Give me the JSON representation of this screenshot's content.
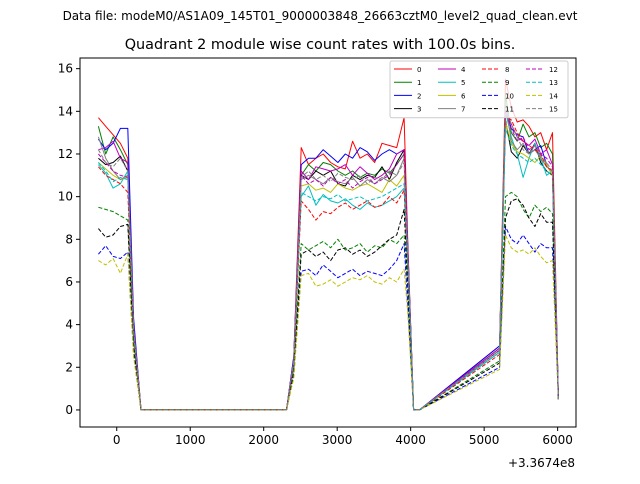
{
  "figure": {
    "suptitle": "Data file: modeM0/AS1A09_145T01_9000003848_26663cztM0_level2_quad_clean.evt",
    "offset_text": "+3.3674e8"
  },
  "chart_data": {
    "type": "line",
    "title": "Quadrant 2 module wise count rates with 100.0s bins.",
    "xlabel": "",
    "ylabel": "",
    "x_offset": 336740000,
    "xlim": [
      -500,
      6250
    ],
    "ylim": [
      -0.8,
      16.5
    ],
    "xticks": [
      0,
      1000,
      2000,
      3000,
      4000,
      5000,
      6000
    ],
    "yticks": [
      0,
      2,
      4,
      6,
      8,
      10,
      12,
      14,
      16
    ],
    "grid": false,
    "legend": {
      "placement": "top-right",
      "columns": 4
    },
    "segments": [
      {
        "x": [
          -250,
          -150,
          -50,
          50,
          150,
          230,
          330
        ]
      },
      {
        "x": [
          2310,
          2410,
          2510,
          2610,
          2710,
          2810,
          2910,
          3010,
          3110,
          3210,
          3310,
          3410,
          3510,
          3610,
          3710,
          3810,
          3910,
          3960,
          4040,
          4120
        ]
      },
      {
        "x": [
          5210,
          5290,
          5370,
          5450,
          5530,
          5610,
          5690,
          5770,
          5850,
          5930,
          6010,
          6090,
          6130
        ]
      }
    ],
    "zero_intervals": [
      [
        330,
        2310
      ],
      [
        4120,
        5210
      ]
    ],
    "series": [
      {
        "name": "0",
        "color": "#ff0000",
        "style": "solid",
        "values": [
          13.7,
          13.3,
          12.9,
          12.5,
          11.8,
          4.0,
          0,
          0,
          2.5,
          12.3,
          11.5,
          11.8,
          12.0,
          11.6,
          11.4,
          11.3,
          12.6,
          11.8,
          12.0,
          11.6,
          12.5,
          12.4,
          12.3,
          13.7,
          8.0,
          0,
          0,
          3.0,
          15.5,
          14.2,
          13.5,
          13.6,
          13.3,
          12.8,
          13.0,
          12.2,
          13.0,
          0.5
        ]
      },
      {
        "name": "1",
        "color": "#008000",
        "style": "solid",
        "values": [
          13.3,
          12.0,
          12.8,
          12.2,
          11.5,
          4.0,
          0,
          0,
          2.4,
          11.0,
          11.5,
          11.2,
          11.6,
          11.5,
          11.2,
          11.0,
          11.2,
          10.9,
          11.1,
          11.0,
          11.3,
          11.1,
          11.5,
          12.0,
          7.6,
          0,
          0,
          2.9,
          14.8,
          13.0,
          12.6,
          13.4,
          12.8,
          13.0,
          12.3,
          12.5,
          12.0,
          0.5
        ]
      },
      {
        "name": "2",
        "color": "#0000ff",
        "style": "solid",
        "values": [
          12.7,
          12.2,
          12.5,
          13.2,
          13.2,
          4.3,
          0,
          0,
          2.5,
          11.5,
          11.8,
          11.8,
          12.2,
          11.9,
          11.6,
          12.0,
          11.8,
          12.3,
          12.1,
          11.7,
          12.0,
          12.2,
          12.0,
          12.2,
          7.8,
          0,
          0,
          3.0,
          14.0,
          13.2,
          12.9,
          12.8,
          12.0,
          12.2,
          12.4,
          11.5,
          11.0,
          0.5
        ]
      },
      {
        "name": "3",
        "color": "#000000",
        "style": "solid",
        "values": [
          11.8,
          11.5,
          11.6,
          11.9,
          11.2,
          3.8,
          0,
          0,
          2.2,
          11.0,
          10.8,
          11.2,
          11.0,
          11.2,
          10.6,
          10.5,
          11.0,
          10.8,
          11.0,
          10.9,
          11.4,
          10.8,
          11.6,
          12.2,
          7.5,
          0,
          0,
          2.8,
          13.6,
          12.1,
          11.8,
          12.4,
          12.0,
          12.5,
          11.6,
          11.2,
          11.0,
          0.5
        ]
      },
      {
        "name": "4",
        "color": "#bf00bf",
        "style": "solid",
        "values": [
          12.2,
          12.3,
          12.6,
          11.8,
          11.6,
          3.9,
          0,
          0,
          2.3,
          11.2,
          10.8,
          11.4,
          11.3,
          11.2,
          11.3,
          11.5,
          11.0,
          11.4,
          11.1,
          10.8,
          11.0,
          11.3,
          12.0,
          12.2,
          7.6,
          0,
          0,
          2.9,
          14.2,
          13.4,
          12.8,
          12.6,
          12.4,
          12.7,
          12.0,
          12.2,
          11.5,
          0.5
        ]
      },
      {
        "name": "5",
        "color": "#00bfbf",
        "style": "solid",
        "values": [
          11.5,
          11.1,
          10.4,
          10.6,
          11.2,
          3.6,
          0,
          0,
          2.2,
          10.0,
          10.5,
          9.6,
          10.1,
          9.8,
          9.7,
          9.9,
          9.6,
          9.4,
          9.7,
          9.5,
          9.6,
          9.8,
          10.0,
          10.4,
          6.8,
          0,
          0,
          2.7,
          14.0,
          12.8,
          12.0,
          10.9,
          11.8,
          12.5,
          11.8,
          11.0,
          11.2,
          0.5
        ]
      },
      {
        "name": "6",
        "color": "#bfbf00",
        "style": "solid",
        "values": [
          11.6,
          11.3,
          11.0,
          10.8,
          10.9,
          3.7,
          0,
          0,
          2.2,
          10.5,
          10.6,
          10.3,
          10.4,
          10.2,
          10.6,
          10.4,
          10.3,
          10.5,
          10.6,
          10.4,
          10.2,
          10.8,
          10.5,
          11.0,
          7.0,
          0,
          0,
          2.8,
          13.5,
          12.5,
          12.1,
          12.0,
          11.8,
          11.6,
          11.9,
          11.5,
          11.0,
          0.5
        ]
      },
      {
        "name": "7",
        "color": "#808080",
        "style": "solid",
        "values": [
          12.8,
          11.8,
          11.2,
          10.8,
          11.0,
          3.8,
          0,
          0,
          2.3,
          10.8,
          11.0,
          10.8,
          10.6,
          10.9,
          10.7,
          10.6,
          10.9,
          10.5,
          10.8,
          10.6,
          10.9,
          10.7,
          11.0,
          11.8,
          7.4,
          0,
          0,
          2.8,
          14.4,
          12.6,
          12.2,
          12.5,
          12.0,
          12.2,
          11.8,
          11.4,
          11.2,
          0.5
        ]
      },
      {
        "name": "8",
        "color": "#ff0000",
        "style": "dashed",
        "values": [
          11.4,
          11.0,
          10.8,
          10.6,
          10.2,
          3.6,
          0,
          0,
          2.1,
          9.8,
          9.4,
          8.9,
          9.3,
          9.2,
          9.5,
          9.7,
          9.4,
          9.6,
          9.8,
          9.5,
          9.6,
          10.0,
          9.7,
          10.3,
          6.8,
          0,
          0,
          2.6,
          13.8,
          13.6,
          13.0,
          12.6,
          12.4,
          12.2,
          12.0,
          11.4,
          11.2,
          0.5
        ]
      },
      {
        "name": "9",
        "color": "#008000",
        "style": "dashed",
        "values": [
          9.5,
          9.4,
          9.3,
          9.1,
          8.9,
          3.2,
          0,
          0,
          1.9,
          7.8,
          7.5,
          7.7,
          7.9,
          7.6,
          8.0,
          7.5,
          7.6,
          7.8,
          7.4,
          7.7,
          7.6,
          8.0,
          7.8,
          8.2,
          5.8,
          0,
          0,
          2.3,
          10.0,
          10.2,
          10.0,
          9.4,
          9.0,
          9.6,
          9.3,
          9.5,
          9.2,
          0.5
        ]
      },
      {
        "name": "10",
        "color": "#0000ff",
        "style": "dashed",
        "values": [
          7.3,
          7.7,
          7.2,
          7.1,
          7.4,
          2.6,
          0,
          0,
          1.6,
          6.5,
          6.6,
          6.3,
          6.8,
          6.5,
          6.2,
          6.4,
          6.6,
          6.3,
          6.5,
          6.4,
          6.3,
          6.6,
          7.0,
          7.8,
          5.0,
          0,
          0,
          2.0,
          8.6,
          8.0,
          7.8,
          8.2,
          7.8,
          7.4,
          7.8,
          7.6,
          7.6,
          0.5
        ]
      },
      {
        "name": "11",
        "color": "#000000",
        "style": "dashed",
        "values": [
          8.5,
          8.1,
          8.2,
          8.6,
          8.7,
          3.0,
          0,
          0,
          1.8,
          7.3,
          7.5,
          7.2,
          7.4,
          7.0,
          7.5,
          7.6,
          7.3,
          7.5,
          7.2,
          7.4,
          7.7,
          8.0,
          8.2,
          9.4,
          6.0,
          0,
          0,
          2.2,
          9.0,
          9.8,
          9.9,
          9.6,
          9.0,
          8.6,
          9.2,
          8.8,
          8.8,
          0.5
        ]
      },
      {
        "name": "12",
        "color": "#bf00bf",
        "style": "dashed",
        "values": [
          12.0,
          11.6,
          11.2,
          11.0,
          10.9,
          3.8,
          0,
          0,
          2.3,
          11.0,
          10.6,
          10.8,
          10.5,
          10.9,
          10.6,
          10.8,
          10.4,
          10.7,
          10.9,
          10.6,
          10.8,
          11.0,
          11.5,
          12.0,
          7.4,
          0,
          0,
          2.8,
          14.0,
          13.2,
          12.6,
          12.8,
          12.2,
          12.4,
          12.0,
          11.8,
          11.4,
          0.5
        ]
      },
      {
        "name": "13",
        "color": "#00bfbf",
        "style": "dashed",
        "values": [
          11.6,
          11.2,
          10.7,
          10.9,
          10.8,
          3.6,
          0,
          0,
          2.2,
          10.2,
          10.0,
          9.8,
          10.0,
          9.9,
          10.1,
          9.8,
          9.9,
          10.0,
          9.8,
          9.9,
          10.0,
          10.2,
          10.4,
          10.6,
          6.9,
          0,
          0,
          2.7,
          13.2,
          12.4,
          12.0,
          11.8,
          11.6,
          11.8,
          11.5,
          11.2,
          11.0,
          0.5
        ]
      },
      {
        "name": "14",
        "color": "#bfbf00",
        "style": "dashed",
        "values": [
          7.0,
          6.8,
          7.1,
          6.4,
          7.3,
          2.5,
          0,
          0,
          1.5,
          6.3,
          6.4,
          5.8,
          5.9,
          6.1,
          5.8,
          6.0,
          6.2,
          6.1,
          6.3,
          6.0,
          5.9,
          6.2,
          6.0,
          6.6,
          4.6,
          0,
          0,
          1.9,
          8.2,
          7.6,
          7.4,
          7.5,
          7.3,
          7.6,
          7.2,
          6.9,
          7.0,
          0.5
        ]
      },
      {
        "name": "15",
        "color": "#808080",
        "style": "dashed",
        "values": [
          12.2,
          11.6,
          11.4,
          11.8,
          11.2,
          3.8,
          0,
          0,
          2.3,
          10.9,
          11.2,
          10.8,
          11.0,
          10.7,
          11.1,
          10.9,
          10.8,
          11.0,
          10.6,
          10.9,
          10.8,
          11.2,
          11.0,
          11.6,
          7.4,
          0,
          0,
          2.8,
          14.2,
          13.4,
          12.8,
          12.2,
          12.0,
          12.4,
          11.9,
          11.6,
          11.2,
          0.5
        ]
      }
    ]
  }
}
